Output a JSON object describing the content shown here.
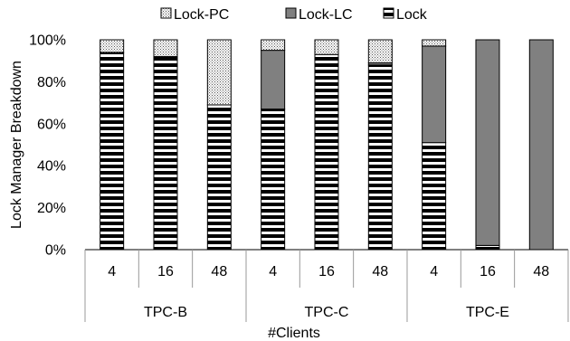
{
  "chart_data": {
    "type": "bar",
    "stacked": true,
    "ylabel": "Lock Manager Breakdown",
    "xlabel": "#Clients",
    "ylim": [
      0,
      100
    ],
    "yticks": [
      "0%",
      "20%",
      "40%",
      "60%",
      "80%",
      "100%"
    ],
    "groups": [
      {
        "name": "TPC-B",
        "categories": [
          "4",
          "16",
          "48"
        ]
      },
      {
        "name": "TPC-C",
        "categories": [
          "4",
          "16",
          "48"
        ]
      },
      {
        "name": "TPC-E",
        "categories": [
          "4",
          "16",
          "48"
        ]
      }
    ],
    "series": [
      {
        "name": "Lock",
        "pattern": "horizontal-stripes",
        "values": [
          94,
          92,
          69,
          67,
          93,
          88,
          51,
          2,
          0
        ]
      },
      {
        "name": "Lock-LC",
        "pattern": "solid-gray",
        "color": "#808080",
        "values": [
          0,
          0,
          0,
          28,
          0,
          1,
          46,
          98,
          100
        ]
      },
      {
        "name": "Lock-PC",
        "pattern": "dotted",
        "values": [
          6,
          8,
          31,
          5,
          7,
          11,
          3,
          0,
          0
        ]
      }
    ],
    "legend": {
      "placement": "top",
      "order": [
        "Lock-PC",
        "Lock-LC",
        "Lock"
      ]
    },
    "grid": false
  }
}
